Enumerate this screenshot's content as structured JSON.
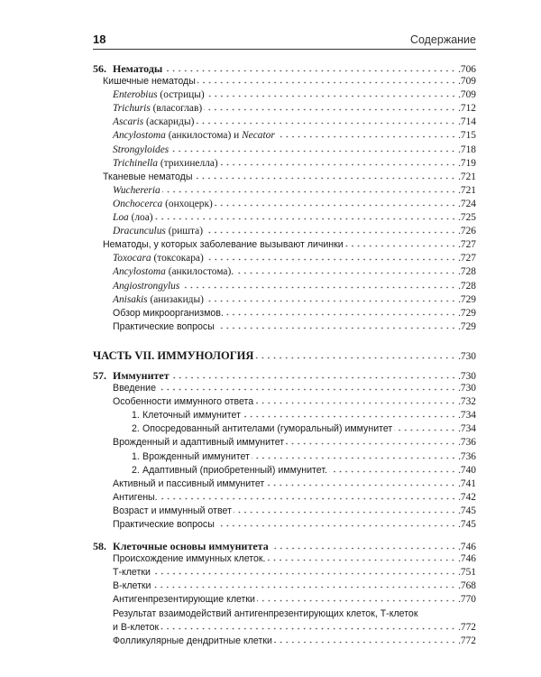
{
  "header": {
    "page_number": "18",
    "title": "Содержание"
  },
  "toc": [
    {
      "level": 0,
      "num": "56.",
      "parts": [
        {
          "t": "Нематоды"
        }
      ],
      "page": ".706"
    },
    {
      "level": 1,
      "parts": [
        {
          "t": "Кишечные нематоды"
        }
      ],
      "page": ".709"
    },
    {
      "level": 2,
      "parts": [
        {
          "t": "Enterobius",
          "i": true
        },
        {
          "t": " (острицы)"
        }
      ],
      "page": ".709"
    },
    {
      "level": 2,
      "parts": [
        {
          "t": "Trichuris",
          "i": true
        },
        {
          "t": " (власоглав)"
        }
      ],
      "page": ".712"
    },
    {
      "level": 2,
      "parts": [
        {
          "t": "Ascaris",
          "i": true
        },
        {
          "t": " (аскариды)"
        }
      ],
      "page": ".714"
    },
    {
      "level": 2,
      "parts": [
        {
          "t": "Ancylostoma",
          "i": true
        },
        {
          "t": " (анкилостома) и "
        },
        {
          "t": "Necator",
          "i": true
        }
      ],
      "page": ".715"
    },
    {
      "level": 2,
      "parts": [
        {
          "t": "Strongyloides",
          "i": true
        }
      ],
      "page": ".718"
    },
    {
      "level": 2,
      "parts": [
        {
          "t": "Trichinella",
          "i": true
        },
        {
          "t": " (трихинелла)"
        }
      ],
      "page": ".719"
    },
    {
      "level": 1,
      "parts": [
        {
          "t": "Тканевые нематоды"
        }
      ],
      "page": ".721"
    },
    {
      "level": 2,
      "parts": [
        {
          "t": "Wuchereria",
          "i": true
        }
      ],
      "page": ".721"
    },
    {
      "level": 2,
      "parts": [
        {
          "t": "Onchocerca",
          "i": true
        },
        {
          "t": " (онхоцерк)"
        }
      ],
      "page": ".724"
    },
    {
      "level": 2,
      "parts": [
        {
          "t": "Loa",
          "i": true
        },
        {
          "t": " (лоа)"
        }
      ],
      "page": ".725"
    },
    {
      "level": 2,
      "parts": [
        {
          "t": "Dracunculus",
          "i": true
        },
        {
          "t": " (ришта)"
        }
      ],
      "page": ".726"
    },
    {
      "level": 1,
      "parts": [
        {
          "t": "Нематоды, у которых заболевание вызывают личинки"
        }
      ],
      "page": ".727"
    },
    {
      "level": 2,
      "parts": [
        {
          "t": "Toxocara",
          "i": true
        },
        {
          "t": " (токсокара)"
        }
      ],
      "page": ".727"
    },
    {
      "level": 2,
      "parts": [
        {
          "t": "Ancylostoma",
          "i": true
        },
        {
          "t": " (анкилостома)."
        }
      ],
      "page": ".728"
    },
    {
      "level": 2,
      "parts": [
        {
          "t": "Angiostrongylus",
          "i": true
        }
      ],
      "page": ".728"
    },
    {
      "level": 2,
      "parts": [
        {
          "t": "Anisakis",
          "i": true
        },
        {
          "t": " (анизакиды)"
        }
      ],
      "page": ".729"
    },
    {
      "level": 2,
      "sans": true,
      "parts": [
        {
          "t": "Обзор микроорганизмов."
        }
      ],
      "page": ".729"
    },
    {
      "level": 2,
      "sans": true,
      "parts": [
        {
          "t": "Практические вопросы"
        }
      ],
      "page": ".729"
    },
    {
      "level": "part",
      "parts": [
        {
          "t": "ЧАСТЬ VII. ИММУНОЛОГИЯ"
        }
      ],
      "page": ".730"
    },
    {
      "level": 0,
      "num": "57.",
      "parts": [
        {
          "t": "Иммунитет"
        }
      ],
      "page": ".730"
    },
    {
      "level": 2,
      "sans": true,
      "parts": [
        {
          "t": "Введение"
        }
      ],
      "page": ".730"
    },
    {
      "level": 2,
      "sans": true,
      "parts": [
        {
          "t": "Особенности иммунного ответа"
        }
      ],
      "page": ".732"
    },
    {
      "level": 3,
      "num": "1.",
      "parts": [
        {
          "t": "Клеточный иммунитет"
        }
      ],
      "page": ".734"
    },
    {
      "level": 3,
      "num": "2.",
      "parts": [
        {
          "t": "Опосредованный антителами (гуморальный) иммунитет"
        }
      ],
      "page": ".734"
    },
    {
      "level": 2,
      "sans": true,
      "parts": [
        {
          "t": "Врожденный и адаптивный иммунитет"
        }
      ],
      "page": ".736"
    },
    {
      "level": 3,
      "num": "1.",
      "parts": [
        {
          "t": "Врожденный иммунитет"
        }
      ],
      "page": ".736"
    },
    {
      "level": 3,
      "num": "2.",
      "parts": [
        {
          "t": "Адаптивный (приобретенный) иммунитет."
        }
      ],
      "page": ".740"
    },
    {
      "level": 2,
      "sans": true,
      "parts": [
        {
          "t": "Активный и пассивный иммунитет"
        }
      ],
      "page": ".741"
    },
    {
      "level": 2,
      "sans": true,
      "parts": [
        {
          "t": "Антигены."
        }
      ],
      "page": ".742"
    },
    {
      "level": 2,
      "sans": true,
      "parts": [
        {
          "t": "Возраст и иммунный ответ"
        }
      ],
      "page": ".745"
    },
    {
      "level": 2,
      "sans": true,
      "parts": [
        {
          "t": "Практические вопросы"
        }
      ],
      "page": ".745"
    },
    {
      "level": 0,
      "num": "58.",
      "parts": [
        {
          "t": "Клеточные основы иммунитета"
        }
      ],
      "page": ".746"
    },
    {
      "level": 2,
      "sans": true,
      "parts": [
        {
          "t": "Происхождение иммунных клеток."
        }
      ],
      "page": ".746"
    },
    {
      "level": 2,
      "sans": true,
      "parts": [
        {
          "t": "Т-клетки"
        }
      ],
      "page": ".751"
    },
    {
      "level": 2,
      "sans": true,
      "parts": [
        {
          "t": "В-клетки"
        }
      ],
      "page": ".768"
    },
    {
      "level": 2,
      "sans": true,
      "parts": [
        {
          "t": "Антигенпрезентирующие клетки"
        }
      ],
      "page": ".770"
    },
    {
      "level": 2,
      "sans": true,
      "parts": [
        {
          "t": "Результат взаимодействий антигенпрезентирующих клеток, Т-клеток"
        }
      ],
      "page": ""
    },
    {
      "level": 2,
      "sans": true,
      "parts": [
        {
          "t": "и В-клеток"
        }
      ],
      "page": ".772"
    },
    {
      "level": 2,
      "sans": true,
      "parts": [
        {
          "t": "Фолликулярные дендритные клетки"
        }
      ],
      "page": ".772"
    }
  ]
}
